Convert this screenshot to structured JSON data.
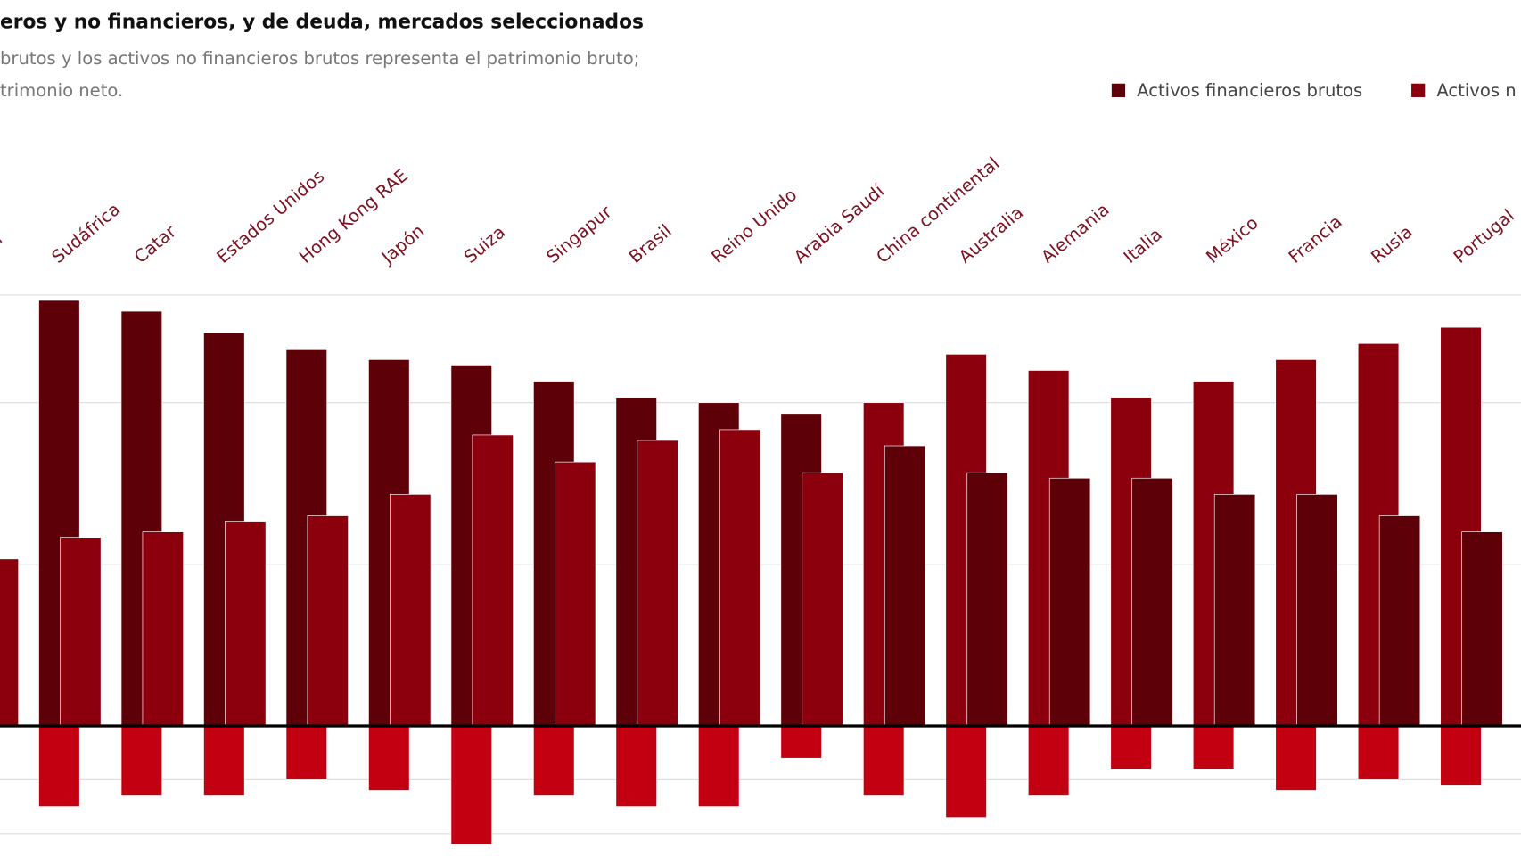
{
  "chart_data": {
    "type": "bar",
    "title": "eros y no financieros, y de deuda, mercados seleccionados",
    "subtitle": [
      "brutos y los activos no financieros brutos representa el patrimonio bruto;",
      "trimonio neto."
    ],
    "categories": [
      "wán",
      "Sudáfrica",
      "Catar",
      "Estados Unidos",
      "Hong Kong RAE",
      "Japón",
      "Suiza",
      "Singapur",
      "Brasil",
      "Reino Unido",
      "Arabia Saudí",
      "China continental",
      "Australia",
      "Alemania",
      "Italia",
      "México",
      "Francia",
      "Rusia",
      "Portugal"
    ],
    "series": [
      {
        "name": "Activos financieros brutos",
        "color": "#5e0008",
        "values": [
          null,
          7.9,
          7.7,
          7.3,
          7.0,
          6.8,
          6.7,
          6.4,
          6.1,
          6.0,
          5.8,
          5.2,
          4.7,
          4.6,
          4.6,
          4.3,
          4.3,
          3.9,
          3.6
        ]
      },
      {
        "name": "Activos n",
        "color": "#8c000e",
        "values": [
          3.1,
          3.5,
          3.6,
          3.8,
          3.9,
          4.3,
          5.4,
          4.9,
          5.3,
          5.5,
          4.7,
          6.0,
          6.9,
          6.6,
          6.1,
          6.4,
          6.8,
          7.1,
          7.4
        ]
      },
      {
        "color": "#c20012",
        "values": [
          null,
          -1.5,
          -1.3,
          -1.3,
          -1.0,
          -1.2,
          -2.2,
          -1.3,
          -1.5,
          -1.5,
          -0.6,
          -1.3,
          -1.7,
          -1.3,
          -0.8,
          -0.8,
          -1.2,
          -1.0,
          -1.1
        ]
      }
    ],
    "ylim": [
      -2.4,
      8
    ],
    "yticks": [
      -2,
      -1,
      0,
      3,
      6,
      8
    ],
    "grid": true
  }
}
